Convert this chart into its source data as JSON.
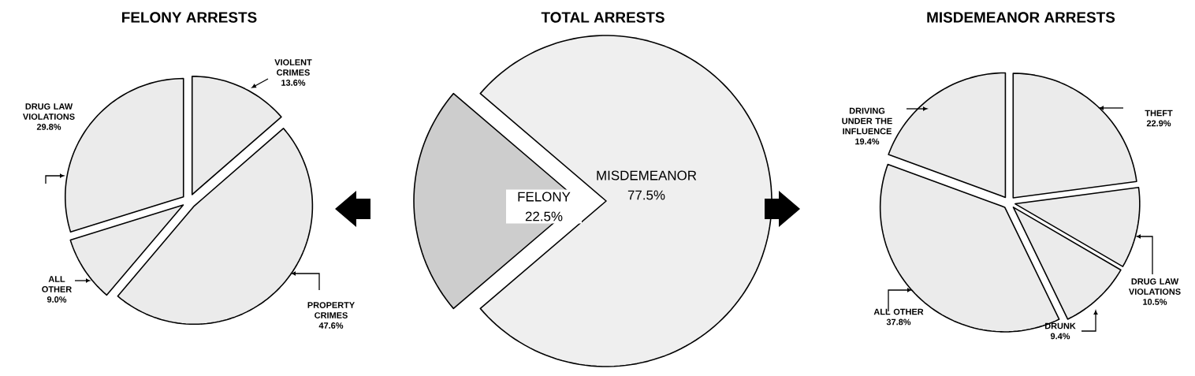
{
  "chart_data": [
    {
      "type": "pie",
      "title": "FELONY ARRESTS",
      "categories": [
        "VIOLENT CRIMES",
        "PROPERTY CRIMES",
        "ALL OTHER",
        "DRUG LAW VIOLATIONS"
      ],
      "values": [
        13.6,
        47.6,
        9.0,
        29.8
      ],
      "value_labels": [
        "13.6%",
        "47.6%",
        "9.0%",
        "29.8%"
      ],
      "colors": [
        "#ebebeb",
        "#ebebeb",
        "#ebebeb",
        "#ebebeb"
      ]
    },
    {
      "type": "pie",
      "title": "TOTAL ARRESTS",
      "categories": [
        "FELONY",
        "MISDEMEANOR"
      ],
      "values": [
        22.5,
        77.5
      ],
      "value_labels": [
        "22.5%",
        "77.5%"
      ],
      "colors": [
        "#cdcdcd",
        "#efefef"
      ]
    },
    {
      "type": "pie",
      "title": "MISDEMEANOR ARRESTS",
      "categories": [
        "THEFT",
        "DRUG LAW VIOLATIONS",
        "DRUNK",
        "ALL OTHER",
        "DRIVING UNDER THE INFLUENCE"
      ],
      "values": [
        22.9,
        10.5,
        9.4,
        37.8,
        19.4
      ],
      "value_labels": [
        "22.9%",
        "10.5%",
        "9.4%",
        "37.8%",
        "19.4%"
      ],
      "colors": [
        "#ebebeb",
        "#ebebeb",
        "#ebebeb",
        "#ebebeb",
        "#ebebeb"
      ]
    }
  ]
}
